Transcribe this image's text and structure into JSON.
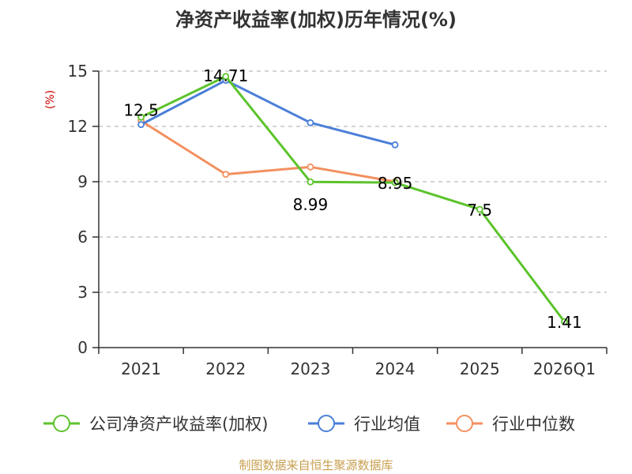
{
  "chart_data": {
    "type": "line",
    "title": "净资产收益率(加权)历年情况(%)",
    "ylabel": "(%)",
    "xlabel": "",
    "ylim": [
      0,
      15
    ],
    "yticks": [
      0,
      3,
      6,
      9,
      12,
      15
    ],
    "grid": "horizontal-dashed",
    "categories": [
      "2021",
      "2022",
      "2023",
      "2024",
      "2025",
      "2026Q1"
    ],
    "series": [
      {
        "name": "公司净资产收益率(加权)",
        "color": "#5cc32c",
        "values": [
          12.5,
          14.71,
          8.99,
          8.95,
          7.5,
          1.41
        ],
        "labels": [
          "12.5",
          "14.71",
          "8.99",
          "8.95",
          "7.5",
          "1.41"
        ]
      },
      {
        "name": "行业均值",
        "color": "#4a7fd8",
        "values": [
          12.1,
          14.5,
          12.2,
          11.0,
          null,
          null
        ]
      },
      {
        "name": "行业中位数",
        "color": "#f39060",
        "values": [
          12.3,
          9.4,
          9.8,
          9.0,
          null,
          null
        ]
      }
    ],
    "legend_position": "bottom"
  },
  "footer": {
    "source": "制图数据来自恒生聚源数据库"
  }
}
